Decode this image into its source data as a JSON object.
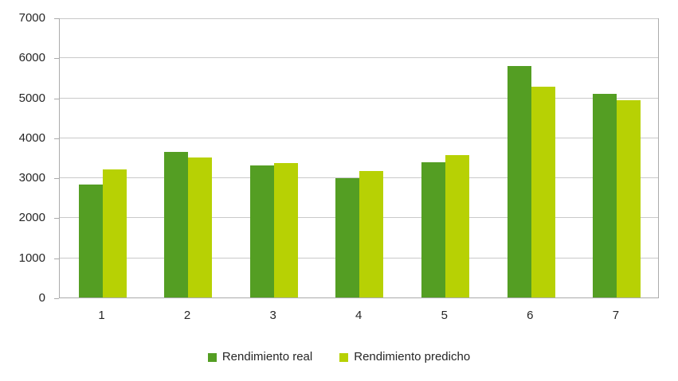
{
  "chart_data": {
    "type": "bar",
    "title": "",
    "xlabel": "",
    "ylabel": "",
    "categories": [
      "1",
      "2",
      "3",
      "4",
      "5",
      "6",
      "7"
    ],
    "series": [
      {
        "name": "Rendimiento real",
        "color": "#549E23",
        "values": [
          2820,
          3640,
          3310,
          2980,
          3390,
          5780,
          5090
        ]
      },
      {
        "name": "Rendimiento predicho",
        "color": "#B7D104",
        "values": [
          3200,
          3500,
          3360,
          3160,
          3560,
          5270,
          4940
        ]
      }
    ],
    "ylim": [
      0,
      7000
    ],
    "ytick_step": 1000,
    "ytick_labels": [
      "0",
      "1000",
      "2000",
      "3000",
      "4000",
      "5000",
      "6000",
      "7000"
    ],
    "grid": true,
    "legend_position": "bottom",
    "colors": {
      "gridline": "#C9C9C9",
      "axis": "#ABABAB",
      "text": "#262626",
      "background": "#FFFFFF"
    }
  }
}
